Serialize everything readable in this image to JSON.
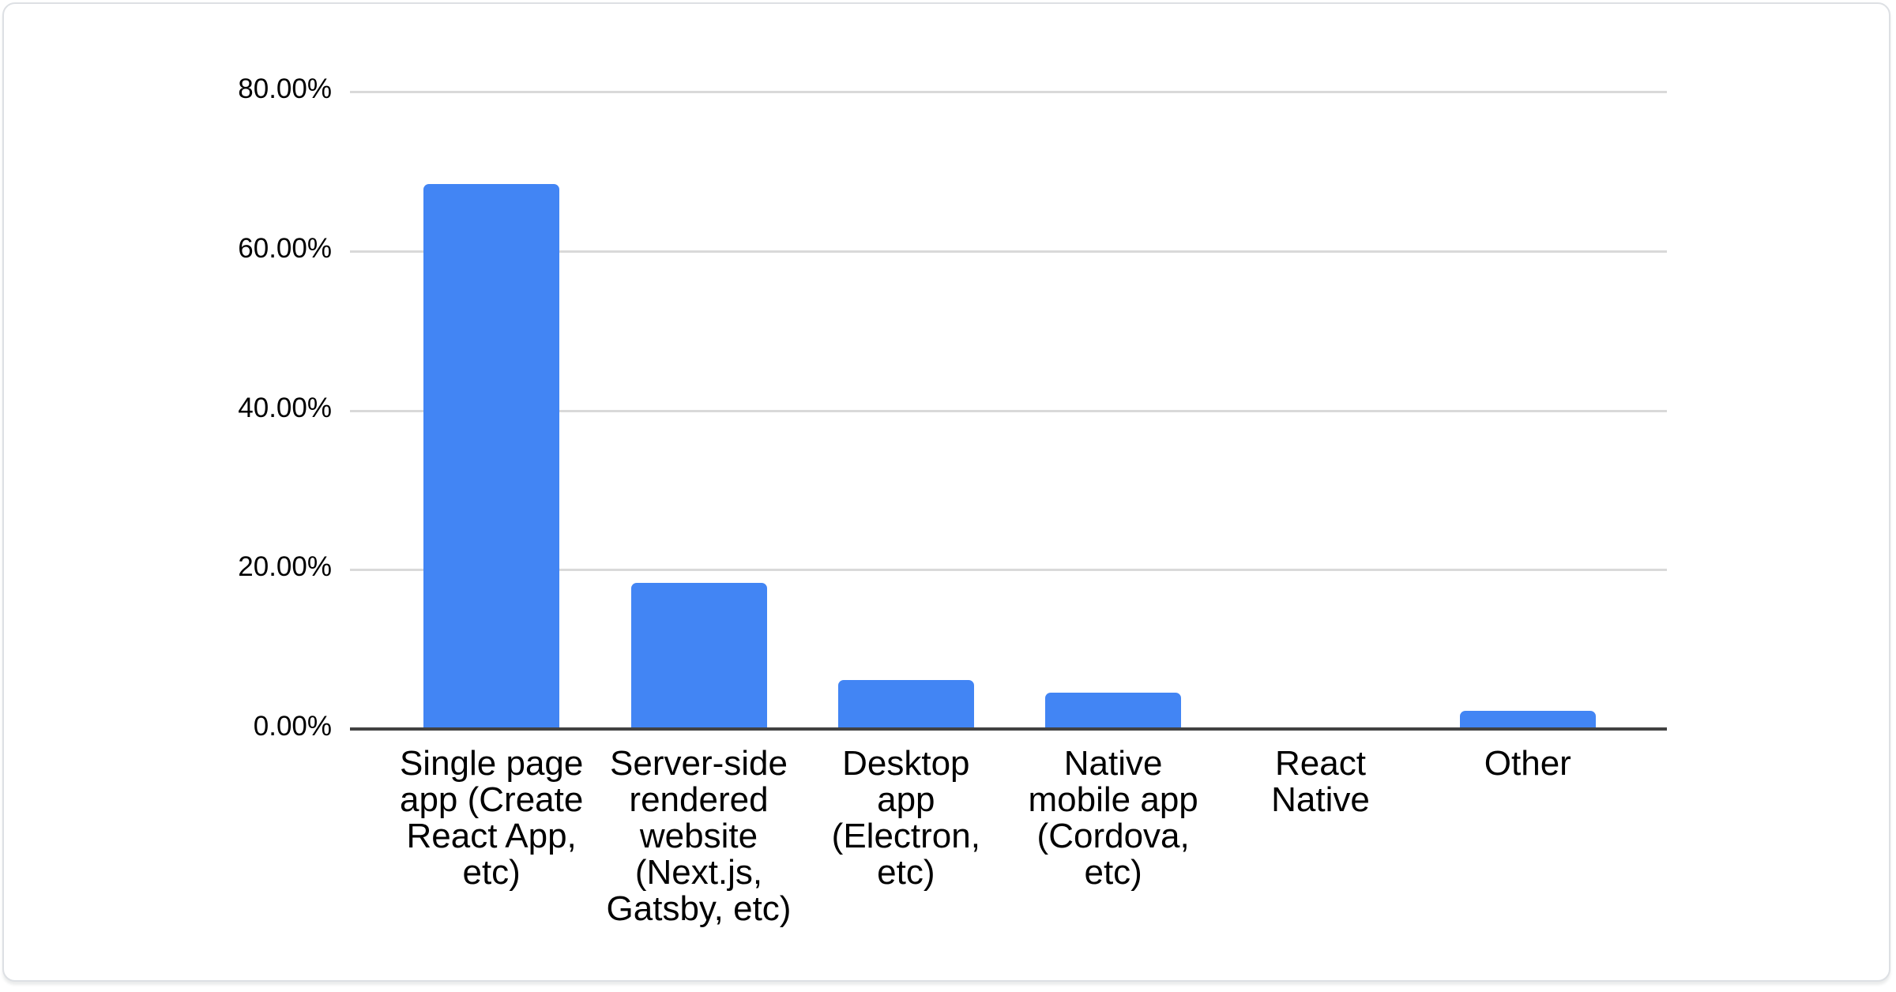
{
  "chart_data": {
    "type": "bar",
    "title": "",
    "xlabel": "",
    "ylabel": "",
    "unit": "percent",
    "legend": "none",
    "grid": true,
    "categories": [
      "Single page app (Create React App, etc)",
      "Server-side rendered website (Next.js, Gatsby, etc)",
      "Desktop app (Electron, etc)",
      "Native mobile app (Cordova, etc)",
      "React Native",
      "Other"
    ],
    "category_label_lines": [
      "Single page\napp (Create\nReact App,\netc)",
      "Server-side\nrendered\nwebsite\n(Next.js,\nGatsby, etc)",
      "Desktop\napp\n(Electron,\netc)",
      "Native\nmobile app\n(Cordova,\netc)",
      "React\nNative",
      "Other"
    ],
    "category_ids": [
      "single-page-app",
      "server-side-rendered-website",
      "desktop-app",
      "native-mobile-app",
      "react-native",
      "other"
    ],
    "values": [
      68.4,
      18.3,
      6.1,
      4.6,
      0.0,
      2.3
    ],
    "ylim": [
      0,
      80
    ],
    "y_ticks": [
      {
        "label": "80.00%",
        "value": 80
      },
      {
        "label": "60.00%",
        "value": 60
      },
      {
        "label": "40.00%",
        "value": 40
      },
      {
        "label": "20.00%",
        "value": 20
      },
      {
        "label": "0.00%",
        "value": 0
      }
    ],
    "colors": {
      "bar": "#4285f4",
      "gridline": "#d9d9d9",
      "baseline": "#424242",
      "text": "#000000",
      "card_border": "#dde0e4",
      "background": "#ffffff"
    }
  }
}
